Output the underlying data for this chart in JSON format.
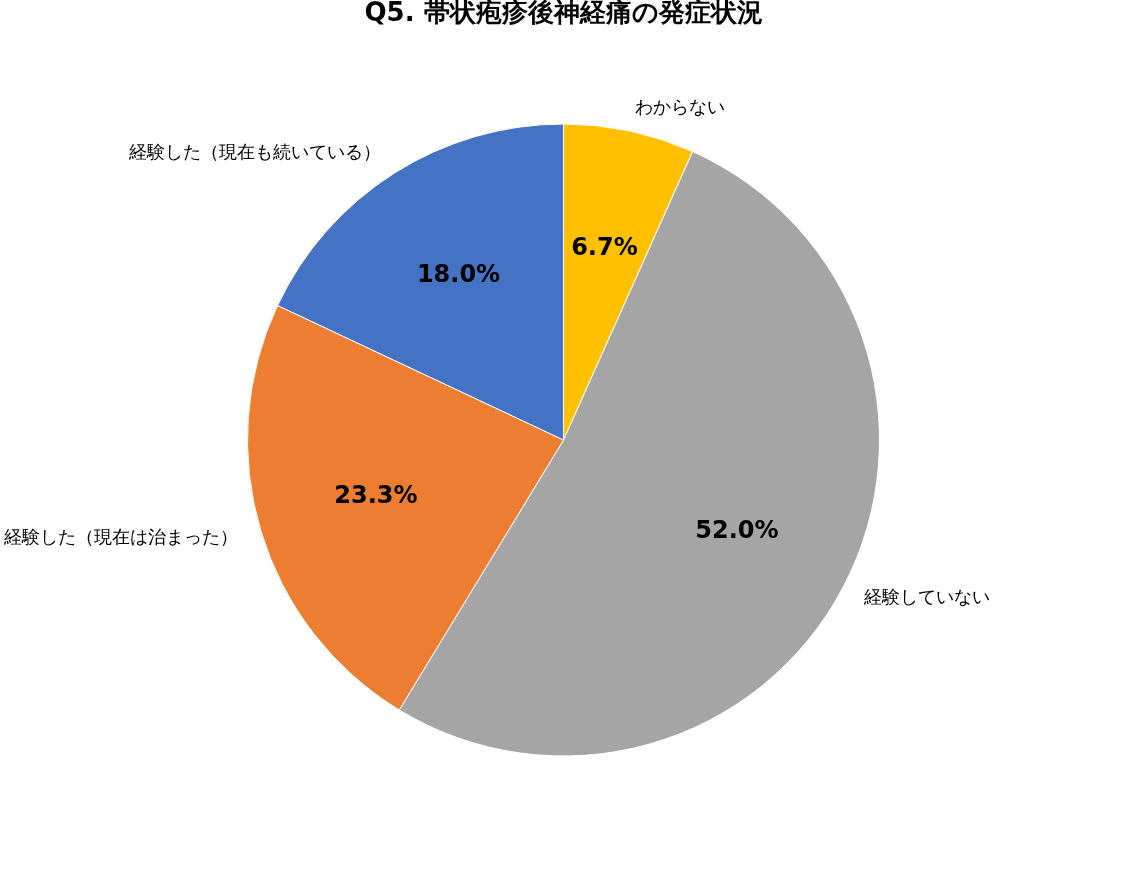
{
  "chart_data": {
    "type": "pie",
    "title": "Q5. 帯状疱疹後神経痛の発症状況",
    "categories": [
      "わからない",
      "経験していない",
      "経験した（現在は治まった）",
      "経験した（現在も続いている）"
    ],
    "values": [
      6.7,
      52.0,
      23.3,
      18.0
    ],
    "colors": [
      "#ffc000",
      "#a5a5a5",
      "#ed7d31",
      "#4472c4"
    ],
    "value_labels": [
      "6.7%",
      "52.0%",
      "23.3%",
      "18.0%"
    ],
    "legend": false
  }
}
